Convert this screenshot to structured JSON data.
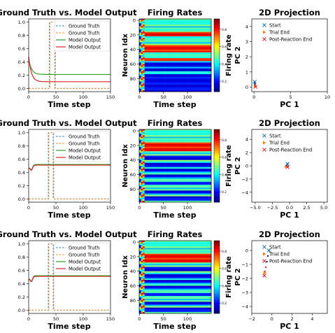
{
  "chart_data": {
    "type": "figure",
    "rows": [
      {
        "line": {
          "title": "Ground Truth vs. Model Output",
          "xlabel": "Time step",
          "xlim": [
            0,
            150
          ],
          "ylim": [
            -0.05,
            1.05
          ],
          "xticks": [
            0,
            50,
            100,
            150
          ],
          "yticks": [
            0.0,
            0.2,
            0.4,
            0.6,
            0.8,
            1.0
          ],
          "yticklabels": [
            "0.0",
            "0.2",
            "0.4",
            "0.6",
            "0.8",
            "1.0"
          ],
          "legend": [
            "Ground Truth",
            "Ground Truth",
            "Model Output",
            "Model Output"
          ],
          "legend_loc": "top-right",
          "pulse": {
            "x0": 38,
            "x1": 48,
            "high": 1.0,
            "low": 0.0
          },
          "model_a": {
            "start": 0.45,
            "end": 0.21,
            "tau": 5,
            "dip": 0.0
          },
          "model_b": {
            "start": 0.48,
            "end": 0.1,
            "tau": 5,
            "dip": 0.0
          }
        },
        "heatmap": {
          "title": "Firing Rates",
          "xlabel": "Time step",
          "ylabel": "Neuron Idx",
          "xticks": [
            0,
            50,
            100
          ],
          "yticks": [
            0,
            20,
            40,
            60,
            80
          ],
          "n_neurons": 100,
          "n_steps": 150,
          "colorbar_label": "Firing rate",
          "colorbar_ticks": [
            0.2,
            0.4,
            0.6,
            0.8
          ],
          "high_bands": [
            [
              18,
              23
            ],
            [
              36,
              44
            ],
            [
              53,
              57
            ]
          ],
          "low_bands": [
            [
              60,
              64
            ],
            [
              68,
              71
            ],
            [
              75,
              78
            ],
            [
              80,
              98
            ]
          ]
        },
        "projection": {
          "title": "2D Projection",
          "xlabel": "PC 1",
          "ylabel": "PC 2",
          "xlim": [
            -0.3,
            10
          ],
          "ylim": [
            -0.3,
            4.5
          ],
          "xticks": [
            0,
            5,
            10
          ],
          "yticks": [
            0,
            1,
            2,
            3,
            4
          ],
          "xticklabels": [
            "0",
            "5",
            "10"
          ],
          "yticklabels": [
            "0",
            "1",
            "2",
            "3",
            "4"
          ],
          "legend": [
            "Start",
            "Trial End",
            "Post-Reaction End"
          ],
          "legend_loc": "top-right",
          "trajectory": [
            [
              0.1,
              0.35
            ],
            [
              0.12,
              0.25
            ],
            [
              0.14,
              0.15
            ],
            [
              0.18,
              0.08
            ],
            [
              0.22,
              0.04
            ]
          ],
          "start": [
            0.1,
            0.35
          ],
          "trial_end": [
            0.18,
            0.06
          ],
          "post_end": [
            0.22,
            0.02
          ]
        }
      },
      {
        "line": {
          "title": "Ground Truth vs. Model Output",
          "xlabel": "Time step",
          "xlim": [
            0,
            150
          ],
          "ylim": [
            -0.05,
            1.05
          ],
          "xticks": [
            0,
            50,
            100,
            150
          ],
          "yticks": [
            0.0,
            0.2,
            0.4,
            0.6,
            0.8,
            1.0
          ],
          "yticklabels": [
            "0.0",
            "0.2",
            "0.4",
            "0.6",
            "0.8",
            "1.0"
          ],
          "legend": [
            "Ground Truth",
            "Ground Truth",
            "Model Output",
            "Model Output"
          ],
          "legend_loc": "top-right",
          "pulse": {
            "x0": 36,
            "x1": 45,
            "high": 1.0,
            "low": 0.0
          },
          "model_a": {
            "start": 0.46,
            "end": 0.52,
            "tau": 3,
            "dip": 0.07
          },
          "model_b": {
            "start": 0.46,
            "end": 0.51,
            "tau": 3,
            "dip": 0.07
          }
        },
        "heatmap": {
          "title": "Firing Rates",
          "xlabel": "Time step",
          "ylabel": "Neuron Idx",
          "xticks": [
            0,
            50,
            100
          ],
          "yticks": [
            0,
            20,
            40,
            60,
            80
          ],
          "n_neurons": 100,
          "n_steps": 150,
          "colorbar_label": "Firing rate",
          "colorbar_ticks": [
            0.2,
            0.4,
            0.6,
            0.8
          ],
          "high_bands": [
            [
              17,
              20
            ],
            [
              22,
              24
            ],
            [
              26,
              28
            ]
          ],
          "low_bands": [
            [
              36,
              40
            ],
            [
              46,
              50
            ],
            [
              54,
              56
            ],
            [
              62,
              64
            ],
            [
              72,
              74
            ],
            [
              84,
              86
            ],
            [
              92,
              96
            ]
          ]
        },
        "projection": {
          "title": "2D Projection",
          "xlabel": "PC 1",
          "ylabel": "PC 2",
          "xlim": [
            -5.5,
            5.5
          ],
          "ylim": [
            -5.5,
            5.5
          ],
          "xticks": [
            -5,
            -2.5,
            0,
            2.5,
            5
          ],
          "yticks": [
            -4,
            -2,
            0,
            2,
            4
          ],
          "xticklabels": [
            "−5.0",
            "−2.5",
            "0.0",
            "2.5",
            "5.0"
          ],
          "yticklabels": [
            "−4",
            "−2",
            "0",
            "2",
            "4"
          ],
          "legend": [
            "Start",
            "Trial End",
            "Post-Reaction End"
          ],
          "legend_loc": "top-right",
          "trajectory": [
            [
              -0.3,
              0.3
            ],
            [
              -0.4,
              0.1
            ],
            [
              -0.5,
              -0.1
            ],
            [
              -0.3,
              -0.2
            ],
            [
              -0.2,
              -0.1
            ]
          ],
          "start": [
            -0.3,
            0.3
          ],
          "trial_end": [
            -0.5,
            -0.1
          ],
          "post_end": [
            -0.3,
            -0.2
          ]
        }
      },
      {
        "line": {
          "title": "Ground Truth vs. Model Output",
          "xlabel": "Time step",
          "xlim": [
            0,
            150
          ],
          "ylim": [
            -0.05,
            1.05
          ],
          "xticks": [
            0,
            50,
            100,
            150
          ],
          "yticks": [
            0.0,
            0.2,
            0.4,
            0.6,
            0.8,
            1.0
          ],
          "yticklabels": [
            "0.0",
            "0.2",
            "0.4",
            "0.6",
            "0.8",
            "1.0"
          ],
          "legend": [
            "Ground Truth",
            "Ground Truth",
            "Model Output",
            "Model Output"
          ],
          "legend_loc": "top-right",
          "pulse": {
            "x0": 36,
            "x1": 45,
            "high": 1.0,
            "low": 0.0
          },
          "model_a": {
            "start": 0.46,
            "end": 0.52,
            "tau": 3,
            "dip": 0.07
          },
          "model_b": {
            "start": 0.46,
            "end": 0.51,
            "tau": 3,
            "dip": 0.07
          }
        },
        "heatmap": {
          "title": "Firing Rates",
          "xlabel": "Time step",
          "ylabel": "Neuron Idx",
          "xticks": [
            0,
            50,
            100
          ],
          "yticks": [
            0,
            20,
            40,
            60,
            80
          ],
          "n_neurons": 100,
          "n_steps": 150,
          "colorbar_label": "Firing rate",
          "colorbar_ticks": [
            0.2,
            0.4,
            0.6,
            0.8
          ],
          "high_bands": [
            [
              17,
              20
            ],
            [
              22,
              24
            ],
            [
              26,
              28
            ]
          ],
          "low_bands": [
            [
              36,
              40
            ],
            [
              46,
              50
            ],
            [
              54,
              56
            ],
            [
              62,
              64
            ],
            [
              72,
              74
            ],
            [
              84,
              86
            ],
            [
              92,
              96
            ]
          ]
        },
        "projection": {
          "title": "2D Projection",
          "xlabel": "PC 1",
          "ylabel": "PC 2",
          "xlim": [
            -2,
            5.5
          ],
          "ylim": [
            -4.5,
            0.7
          ],
          "xticks": [
            -2,
            0,
            2,
            4
          ],
          "yticks": [
            -4,
            -3,
            -2,
            -1,
            0
          ],
          "xticklabels": [
            "−2",
            "0",
            "2",
            "4"
          ],
          "yticklabels": [
            "−4",
            "−3",
            "−2",
            "−1",
            "0"
          ],
          "legend": [
            "Start",
            "Trial End",
            "Post-Reaction End"
          ],
          "legend_loc": "top-right",
          "trajectory": [
            [
              -0.3,
              0.0
            ],
            [
              -0.4,
              -0.4
            ],
            [
              -0.5,
              -0.8
            ],
            [
              -0.6,
              -1.2
            ],
            [
              -0.7,
              -1.5
            ],
            [
              -0.75,
              -1.8
            ]
          ],
          "start": [
            -0.3,
            0.0
          ],
          "trial_end": [
            -0.7,
            -1.6
          ],
          "post_end": [
            -0.75,
            -1.8
          ]
        }
      }
    ]
  },
  "colors": {
    "gt_a": "#1f77b4",
    "gt_b": "#ff7f0e",
    "model_a": "#2ca02c",
    "model_b": "#d62728",
    "start_marker": "#1f77b4",
    "trial_end_marker": "#ff7f0e",
    "post_end_marker": "#d62728"
  }
}
